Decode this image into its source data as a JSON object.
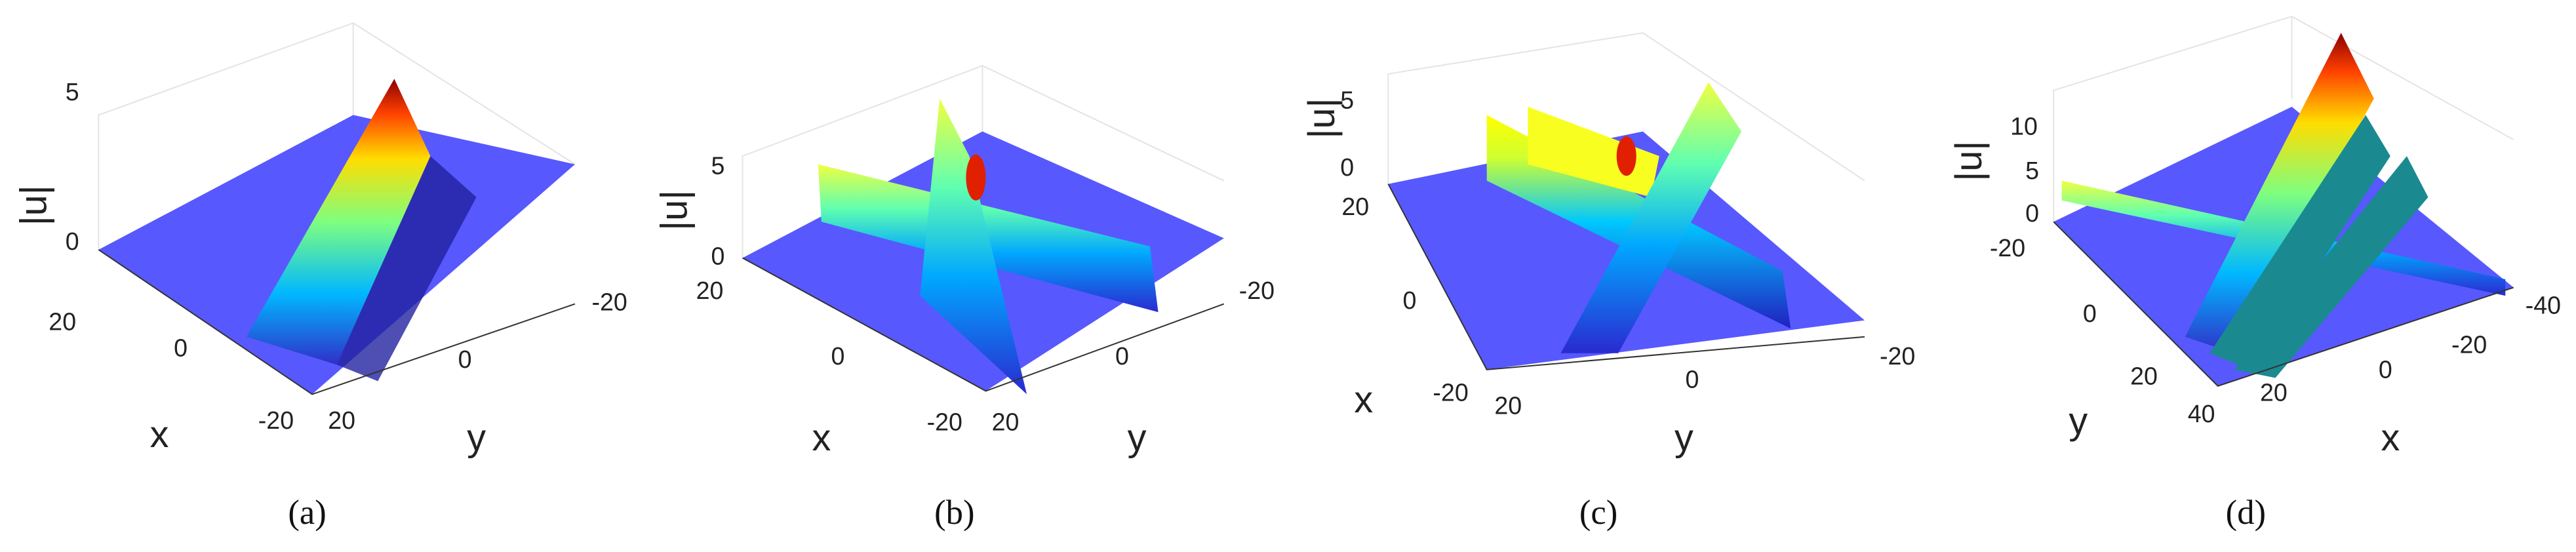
{
  "panels": [
    {
      "caption": "(a)",
      "z_label": "|u|",
      "z_ticks": [
        "5",
        "0"
      ],
      "x_label": "x",
      "x_ticks": [
        "20",
        "0",
        "-20"
      ],
      "y_label": "y",
      "y_ticks": [
        "20",
        "0",
        "-20"
      ]
    },
    {
      "caption": "(b)",
      "z_label": "|u|",
      "z_ticks": [
        "5",
        "0"
      ],
      "x_label": "x",
      "x_ticks": [
        "20",
        "0",
        "-20"
      ],
      "y_label": "y",
      "y_ticks": [
        "20",
        "0",
        "-20"
      ]
    },
    {
      "caption": "(c)",
      "z_label": "|u|",
      "z_ticks": [
        "5",
        "0"
      ],
      "x_label": "x",
      "x_ticks": [
        "20",
        "0",
        "-20"
      ],
      "y_label": "y",
      "y_ticks": [
        "20",
        "0",
        "-20"
      ]
    },
    {
      "caption": "(d)",
      "z_label": "|u|",
      "z_ticks": [
        "10",
        "5",
        "0"
      ],
      "x_label": "x",
      "x_ticks": [
        "20",
        "0",
        "-20",
        "-40"
      ],
      "y_label": "y",
      "y_ticks": [
        "-20",
        "0",
        "20",
        "40"
      ]
    }
  ]
}
